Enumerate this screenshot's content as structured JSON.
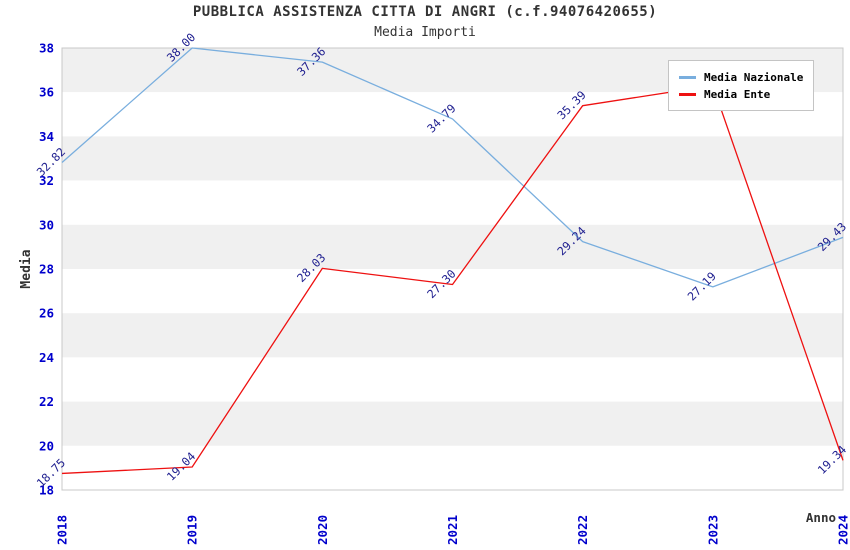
{
  "page": {
    "title": "PUBBLICA ASSISTENZA CITTA DI ANGRI (c.f.94076420655)",
    "subtitle": "Media Importi"
  },
  "chart_data": {
    "type": "line",
    "title": "PUBBLICA ASSISTENZA CITTA DI ANGRI (c.f.94076420655)",
    "subtitle": "Media Importi",
    "xlabel": "Anno",
    "ylabel": "Media",
    "x_categories": [
      "2018",
      "2019",
      "2020",
      "2021",
      "2022",
      "2023",
      "2024"
    ],
    "ylim": [
      18,
      38
    ],
    "ytick_step": 2,
    "yticks": [
      18,
      20,
      22,
      24,
      26,
      28,
      30,
      32,
      34,
      36,
      38
    ],
    "grid_bands": true,
    "legend_position": "top-right",
    "legend_entries": [
      "Media Nazionale",
      "Media Ente"
    ],
    "series": [
      {
        "name": "Media Nazionale",
        "color": "#79aede",
        "values": [
          32.82,
          38.0,
          37.36,
          34.79,
          29.24,
          27.19,
          29.43
        ],
        "point_labels": [
          "32.82",
          "38.00",
          "37.36",
          "34.79",
          "29.24",
          "27.19",
          "29.43"
        ]
      },
      {
        "name": "Media Ente",
        "color": "#ee1111",
        "values": [
          18.75,
          19.04,
          28.03,
          27.3,
          35.39,
          36.3,
          19.34
        ],
        "point_labels": [
          "18.75",
          "19.04",
          "28.03",
          "27.30",
          "35.39",
          "",
          "19.34"
        ]
      }
    ]
  },
  "style": {
    "tick_color": "#0000cc",
    "point_label_color": "#202090",
    "text_color": "#333333",
    "band_color": "#f0f0f0",
    "plot_bg": "#ffffff",
    "plot_border_color": "#c8c8c8",
    "background": "#ffffff"
  }
}
